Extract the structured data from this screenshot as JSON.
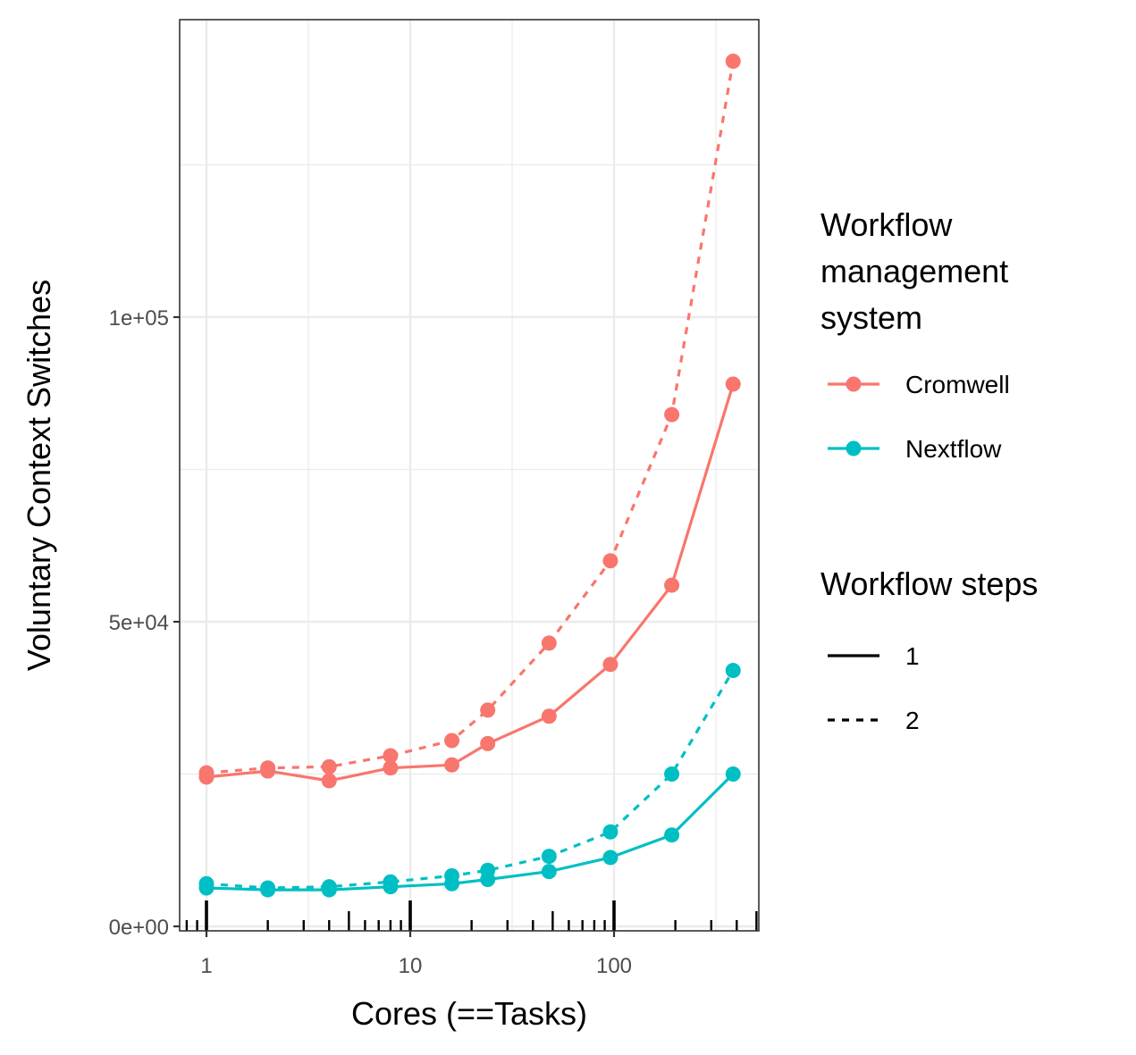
{
  "chart_data": {
    "type": "line",
    "xlabel": "Cores (==Tasks)",
    "ylabel": "Voluntary Context Switches",
    "x_scale": "log10",
    "xlim": [
      0.78,
      520
    ],
    "ylim": [
      0,
      143000
    ],
    "x_ticks": [
      1,
      10,
      100
    ],
    "x_tick_labels": [
      "1",
      "10",
      "100"
    ],
    "y_ticks": [
      0,
      50000,
      100000
    ],
    "y_tick_labels": [
      "0e+00",
      "5e+04",
      "1e+05"
    ],
    "grid": true,
    "rug": true,
    "rug_x": [
      0.8,
      0.9,
      1,
      2,
      3,
      4,
      5,
      6,
      7,
      8,
      9,
      10,
      20,
      30,
      40,
      50,
      60,
      70,
      80,
      90,
      100,
      200,
      300,
      400,
      500
    ],
    "legend_position": "right",
    "legends": [
      {
        "title": "Workflow\nmanagement\nsystem",
        "title_lines": [
          "Workflow",
          "management",
          "system"
        ],
        "entries": [
          {
            "label": "Cromwell",
            "color": "#F8766D"
          },
          {
            "label": "Nextflow",
            "color": "#00BFC4"
          }
        ]
      },
      {
        "title": "Workflow steps",
        "entries": [
          {
            "label": "1",
            "linetype": "solid"
          },
          {
            "label": "2",
            "linetype": "dashed"
          }
        ]
      }
    ],
    "series": [
      {
        "system": "Cromwell",
        "steps": "1",
        "color": "#F8766D",
        "linetype": "solid",
        "x": [
          1,
          2,
          4,
          8,
          16,
          24,
          48,
          96,
          192,
          384
        ],
        "y": [
          24500,
          25500,
          23900,
          26000,
          26500,
          30000,
          34500,
          43000,
          56000,
          89000
        ]
      },
      {
        "system": "Cromwell",
        "steps": "2",
        "color": "#F8766D",
        "linetype": "dashed",
        "x": [
          1,
          2,
          4,
          8,
          16,
          24,
          48,
          96,
          192,
          384
        ],
        "y": [
          25200,
          26000,
          26200,
          28000,
          30500,
          35500,
          46500,
          60000,
          84000,
          142000
        ]
      },
      {
        "system": "Nextflow",
        "steps": "1",
        "color": "#00BFC4",
        "linetype": "solid",
        "x": [
          1,
          2,
          4,
          8,
          16,
          24,
          48,
          96,
          192,
          384
        ],
        "y": [
          6300,
          6000,
          6000,
          6500,
          7000,
          7700,
          9000,
          11300,
          15000,
          25000
        ]
      },
      {
        "system": "Nextflow",
        "steps": "2",
        "color": "#00BFC4",
        "linetype": "dashed",
        "x": [
          1,
          2,
          4,
          8,
          16,
          24,
          48,
          96,
          192,
          384
        ],
        "y": [
          7000,
          6300,
          6500,
          7300,
          8300,
          9200,
          11500,
          15500,
          25000,
          42000
        ]
      }
    ]
  }
}
